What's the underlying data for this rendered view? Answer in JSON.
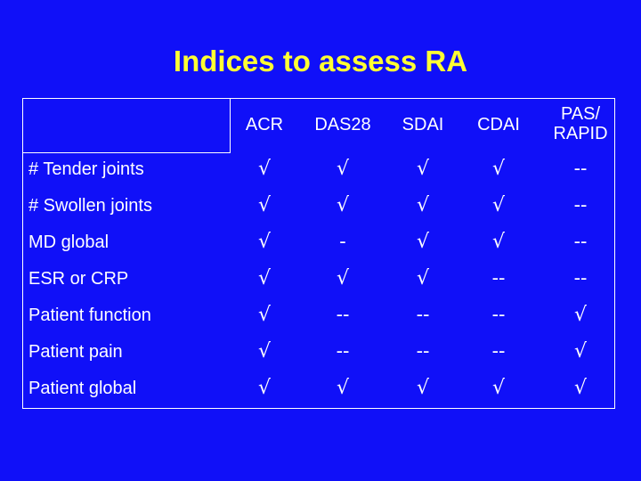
{
  "header": {
    "title": "Indices to assess RA"
  },
  "table": {
    "columns": [
      "ACR",
      "DAS28",
      "SDAI",
      "CDAI",
      "PAS/ RAPID"
    ],
    "rows": [
      [
        "# Tender joints",
        "√",
        "√",
        "√",
        "√",
        "--"
      ],
      [
        "# Swollen joints",
        "√",
        "√",
        "√",
        "√",
        "--"
      ],
      [
        "MD global",
        "√",
        "-",
        "√",
        "√",
        "--"
      ],
      [
        "ESR or CRP",
        "√",
        "√",
        "√",
        "--",
        "--"
      ],
      [
        "Patient function",
        "√",
        "--",
        "--",
        "--",
        "√"
      ],
      [
        "Patient pain",
        "√",
        "--",
        "--",
        "--",
        "√"
      ],
      [
        "Patient global",
        "√",
        "√",
        "√",
        "√",
        "√"
      ]
    ]
  }
}
